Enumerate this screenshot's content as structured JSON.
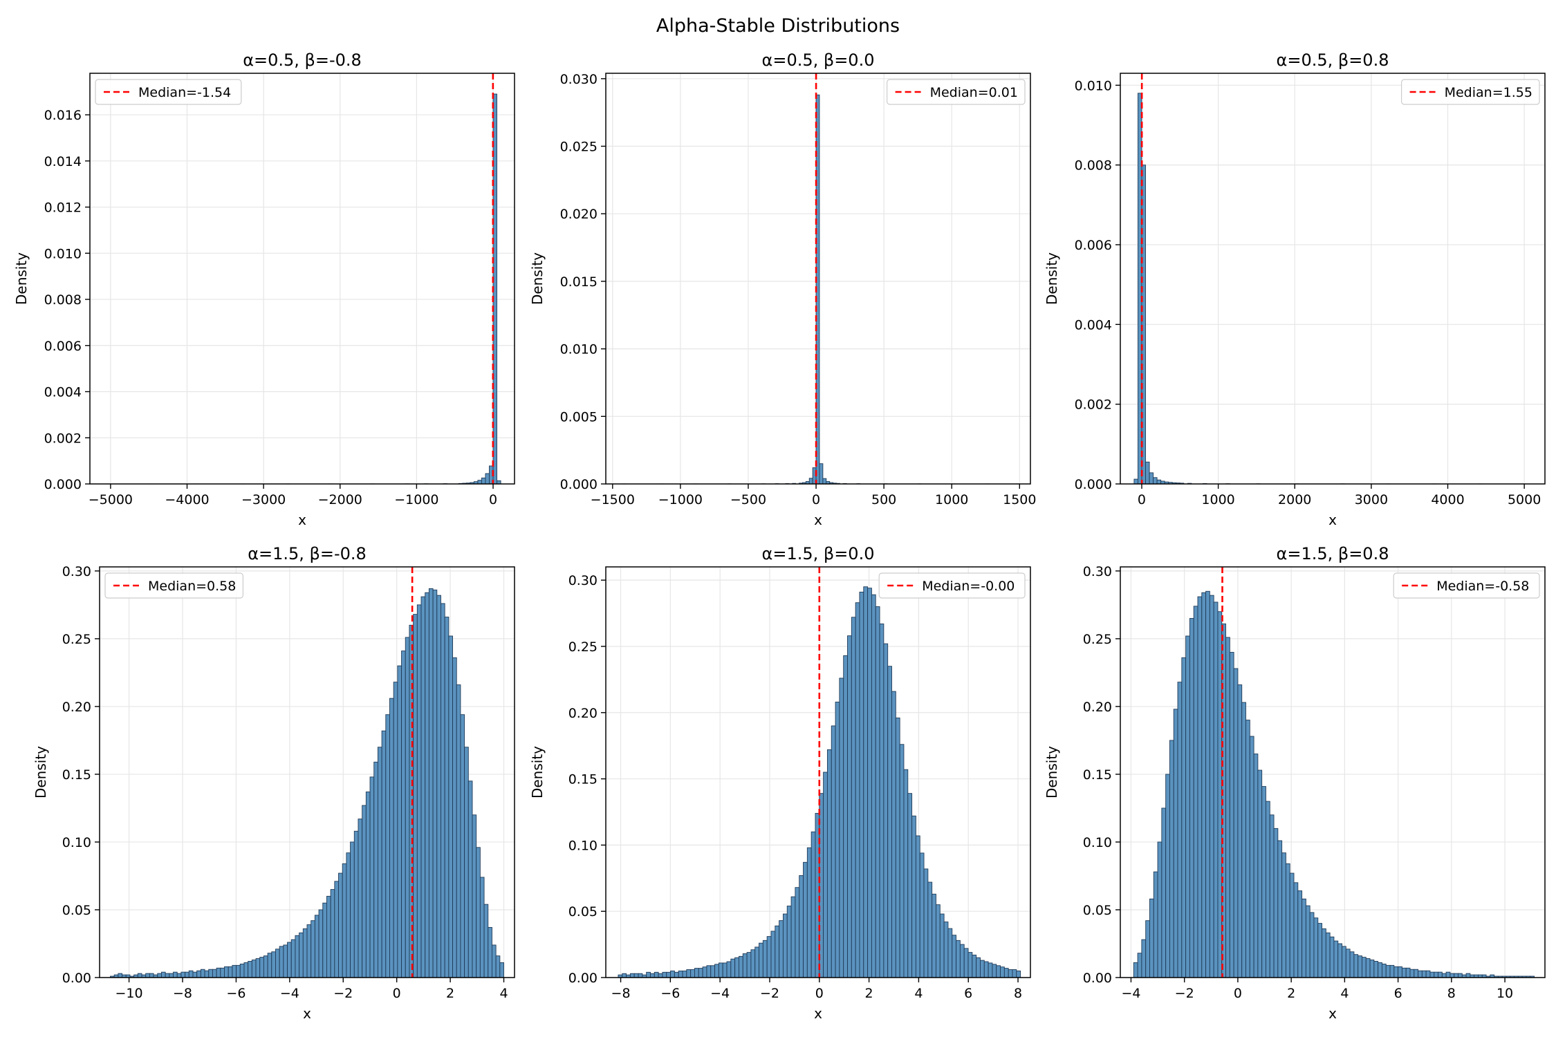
{
  "figure": {
    "title": "Alpha-Stable Distributions"
  },
  "colors": {
    "bar_fill": "#5b93bf",
    "bar_edge": "#1f3a57",
    "median_line": "#ff0000",
    "grid": "#e6e6e6"
  },
  "chart_data": [
    {
      "type": "bar",
      "title": "α=0.5, β=-0.8",
      "xlabel": "x",
      "ylabel": "Density",
      "xlim": [
        -5270,
        280
      ],
      "ylim": [
        0,
        0.0178
      ],
      "xticks": [
        -5000,
        -4000,
        -3000,
        -2000,
        -1000,
        0
      ],
      "xtick_labels": [
        "−5000",
        "−4000",
        "−3000",
        "−2000",
        "−1000",
        "0"
      ],
      "yticks": [
        0,
        0.002,
        0.004,
        0.006,
        0.008,
        0.01,
        0.012,
        0.014,
        0.016
      ],
      "ytick_labels": [
        "0.000",
        "0.002",
        "0.004",
        "0.006",
        "0.008",
        "0.010",
        "0.012",
        "0.014",
        "0.016"
      ],
      "median": -1.54,
      "legend_label": "Median=-1.54",
      "legend_loc": "upper left",
      "grid": true,
      "bins": [
        [
          -5050,
          -5000,
          2e-06
        ],
        [
          -4500,
          -4450,
          2e-06
        ],
        [
          -3900,
          -3850,
          2e-06
        ],
        [
          -3300,
          -3250,
          2e-06
        ],
        [
          -2700,
          -2650,
          3e-06
        ],
        [
          -2150,
          -2100,
          3e-06
        ],
        [
          -1600,
          -1550,
          4e-06
        ],
        [
          -1150,
          -1100,
          5e-06
        ],
        [
          -900,
          -850,
          8e-06
        ],
        [
          -650,
          -600,
          1.2e-05
        ],
        [
          -450,
          -400,
          2e-05
        ],
        [
          -400,
          -350,
          3e-05
        ],
        [
          -350,
          -300,
          4e-05
        ],
        [
          -300,
          -250,
          6e-05
        ],
        [
          -250,
          -200,
          0.0001
        ],
        [
          -200,
          -150,
          0.00016
        ],
        [
          -150,
          -100,
          0.00026
        ],
        [
          -100,
          -50,
          0.00045
        ],
        [
          -50,
          0,
          0.00078
        ],
        [
          0,
          50,
          0.0169
        ],
        [
          50,
          100,
          0.00014
        ]
      ]
    },
    {
      "type": "bar",
      "title": "α=0.5, β=0.0",
      "xlabel": "x",
      "ylabel": "Density",
      "xlim": [
        -1550,
        1580
      ],
      "ylim": [
        0,
        0.0304
      ],
      "xticks": [
        -1500,
        -1000,
        -500,
        0,
        500,
        1000,
        1500
      ],
      "xtick_labels": [
        "−1500",
        "−1000",
        "−500",
        "0",
        "500",
        "1000",
        "1500"
      ],
      "yticks": [
        0,
        0.005,
        0.01,
        0.015,
        0.02,
        0.025,
        0.03
      ],
      "ytick_labels": [
        "0.000",
        "0.005",
        "0.010",
        "0.015",
        "0.020",
        "0.025",
        "0.030"
      ],
      "median": 0.01,
      "legend_label": "Median=0.01",
      "legend_loc": "upper right",
      "grid": true,
      "bins": [
        [
          -1425,
          -1400,
          5e-06
        ],
        [
          -1150,
          -1125,
          5e-06
        ],
        [
          -900,
          -875,
          6e-06
        ],
        [
          -650,
          -625,
          8e-06
        ],
        [
          -400,
          -375,
          1.2e-05
        ],
        [
          -300,
          -275,
          2e-05
        ],
        [
          -225,
          -200,
          3e-05
        ],
        [
          -175,
          -150,
          4e-05
        ],
        [
          -125,
          -100,
          6e-05
        ],
        [
          -100,
          -75,
          0.0001
        ],
        [
          -75,
          -50,
          0.00018
        ],
        [
          -50,
          -25,
          0.00042
        ],
        [
          -25,
          0,
          0.0012
        ],
        [
          0,
          25,
          0.0288
        ],
        [
          25,
          50,
          0.0015
        ],
        [
          50,
          75,
          0.0004
        ],
        [
          75,
          100,
          0.00018
        ],
        [
          100,
          125,
          0.0001
        ],
        [
          125,
          150,
          6e-05
        ],
        [
          150,
          175,
          4e-05
        ],
        [
          200,
          225,
          3e-05
        ],
        [
          300,
          325,
          2e-05
        ],
        [
          500,
          525,
          1.2e-05
        ],
        [
          750,
          775,
          8e-06
        ],
        [
          1000,
          1025,
          6e-06
        ],
        [
          1250,
          1275,
          5e-06
        ],
        [
          1475,
          1500,
          5e-06
        ]
      ]
    },
    {
      "type": "bar",
      "title": "α=0.5, β=0.8",
      "xlabel": "x",
      "ylabel": "Density",
      "xlim": [
        -280,
        5270
      ],
      "ylim": [
        0,
        0.0103
      ],
      "xticks": [
        0,
        1000,
        2000,
        3000,
        4000,
        5000
      ],
      "xtick_labels": [
        "0",
        "1000",
        "2000",
        "3000",
        "4000",
        "5000"
      ],
      "yticks": [
        0,
        0.002,
        0.004,
        0.006,
        0.008,
        0.01
      ],
      "ytick_labels": [
        "0.000",
        "0.002",
        "0.004",
        "0.006",
        "0.008",
        "0.010"
      ],
      "median": 1.55,
      "legend_label": "Median=1.55",
      "legend_loc": "upper right",
      "grid": true,
      "bins": [
        [
          -100,
          -50,
          0.00012
        ],
        [
          -50,
          0,
          0.0098
        ],
        [
          0,
          50,
          0.008
        ],
        [
          50,
          100,
          0.00055
        ],
        [
          100,
          150,
          0.00028
        ],
        [
          150,
          200,
          0.00016
        ],
        [
          200,
          250,
          0.0001
        ],
        [
          250,
          300,
          7e-05
        ],
        [
          300,
          350,
          5e-05
        ],
        [
          350,
          400,
          4e-05
        ],
        [
          400,
          450,
          3e-05
        ],
        [
          450,
          500,
          2.5e-05
        ],
        [
          500,
          550,
          2e-05
        ],
        [
          600,
          650,
          1.5e-05
        ],
        [
          800,
          850,
          1e-05
        ],
        [
          1100,
          1150,
          6e-06
        ],
        [
          1500,
          1550,
          4e-06
        ],
        [
          2000,
          2050,
          3e-06
        ],
        [
          2600,
          2650,
          3e-06
        ],
        [
          3200,
          3250,
          2e-06
        ],
        [
          3800,
          3850,
          2e-06
        ],
        [
          4400,
          4450,
          2e-06
        ],
        [
          4950,
          5000,
          2e-06
        ]
      ]
    },
    {
      "type": "bar",
      "title": "α=1.5, β=-0.8",
      "xlabel": "x",
      "ylabel": "Density",
      "xlim": [
        -11.1,
        4.4
      ],
      "ylim": [
        0,
        0.303
      ],
      "xticks": [
        -10,
        -8,
        -6,
        -4,
        -2,
        0,
        2,
        4
      ],
      "xtick_labels": [
        "−10",
        "−8",
        "−6",
        "−4",
        "−2",
        "0",
        "2",
        "4"
      ],
      "yticks": [
        0,
        0.05,
        0.1,
        0.15,
        0.2,
        0.25,
        0.3
      ],
      "ytick_labels": [
        "0.00",
        "0.05",
        "0.10",
        "0.15",
        "0.20",
        "0.25",
        "0.30"
      ],
      "median": 0.58,
      "legend_label": "Median=0.58",
      "legend_loc": "upper left",
      "grid": true,
      "bin_start": -10.7,
      "bin_width": 0.147,
      "densities": [
        0.001,
        0.002,
        0.003,
        0.002,
        0.002,
        0.001,
        0.002,
        0.003,
        0.002,
        0.003,
        0.003,
        0.002,
        0.003,
        0.004,
        0.003,
        0.003,
        0.004,
        0.003,
        0.004,
        0.004,
        0.005,
        0.004,
        0.005,
        0.006,
        0.005,
        0.006,
        0.006,
        0.007,
        0.007,
        0.008,
        0.008,
        0.009,
        0.009,
        0.01,
        0.011,
        0.012,
        0.013,
        0.014,
        0.015,
        0.016,
        0.018,
        0.019,
        0.021,
        0.023,
        0.024,
        0.026,
        0.028,
        0.031,
        0.033,
        0.036,
        0.039,
        0.042,
        0.046,
        0.05,
        0.055,
        0.06,
        0.065,
        0.071,
        0.077,
        0.084,
        0.092,
        0.1,
        0.108,
        0.117,
        0.127,
        0.137,
        0.148,
        0.159,
        0.17,
        0.182,
        0.194,
        0.206,
        0.218,
        0.23,
        0.241,
        0.251,
        0.26,
        0.268,
        0.275,
        0.281,
        0.284,
        0.287,
        0.286,
        0.282,
        0.276,
        0.266,
        0.252,
        0.236,
        0.216,
        0.194,
        0.17,
        0.145,
        0.12,
        0.096,
        0.074,
        0.054,
        0.037,
        0.024,
        0.016,
        0.011
      ]
    },
    {
      "type": "bar",
      "title": "α=1.5, β=0.0",
      "xlabel": "x",
      "ylabel": "Density",
      "xlim": [
        -8.6,
        8.5
      ],
      "ylim": [
        0,
        0.31
      ],
      "xticks": [
        -8,
        -6,
        -4,
        -2,
        0,
        2,
        4,
        6,
        8
      ],
      "xtick_labels": [
        "−8",
        "−6",
        "−4",
        "−2",
        "0",
        "2",
        "4",
        "6",
        "8"
      ],
      "yticks": [
        0,
        0.05,
        0.1,
        0.15,
        0.2,
        0.25,
        0.3
      ],
      "ytick_labels": [
        "0.00",
        "0.05",
        "0.10",
        "0.15",
        "0.20",
        "0.25",
        "0.30"
      ],
      "median": -0.0,
      "legend_label": "Median=-0.00",
      "legend_loc": "upper right",
      "grid": true,
      "bin_start": -8.1,
      "bin_width": 0.162,
      "densities": [
        0.002,
        0.003,
        0.002,
        0.003,
        0.003,
        0.003,
        0.002,
        0.004,
        0.003,
        0.004,
        0.003,
        0.004,
        0.004,
        0.005,
        0.004,
        0.005,
        0.005,
        0.006,
        0.006,
        0.007,
        0.007,
        0.008,
        0.009,
        0.009,
        0.01,
        0.011,
        0.011,
        0.012,
        0.014,
        0.015,
        0.016,
        0.018,
        0.019,
        0.021,
        0.023,
        0.026,
        0.028,
        0.031,
        0.035,
        0.039,
        0.043,
        0.048,
        0.054,
        0.061,
        0.068,
        0.077,
        0.087,
        0.098,
        0.11,
        0.124,
        0.139,
        0.155,
        0.172,
        0.19,
        0.208,
        0.226,
        0.243,
        0.258,
        0.272,
        0.283,
        0.291,
        0.295,
        0.294,
        0.289,
        0.28,
        0.267,
        0.252,
        0.235,
        0.216,
        0.196,
        0.176,
        0.157,
        0.139,
        0.122,
        0.107,
        0.094,
        0.082,
        0.072,
        0.063,
        0.055,
        0.048,
        0.042,
        0.037,
        0.032,
        0.028,
        0.025,
        0.022,
        0.019,
        0.017,
        0.015,
        0.013,
        0.012,
        0.011,
        0.01,
        0.009,
        0.008,
        0.007,
        0.006,
        0.006,
        0.005
      ]
    },
    {
      "type": "bar",
      "title": "α=1.5, β=0.8",
      "xlabel": "x",
      "ylabel": "Density",
      "xlim": [
        -4.4,
        11.5
      ],
      "ylim": [
        0,
        0.303
      ],
      "xticks": [
        -4,
        -2,
        0,
        2,
        4,
        6,
        8,
        10
      ],
      "xtick_labels": [
        "−4",
        "−2",
        "0",
        "2",
        "4",
        "6",
        "8",
        "10"
      ],
      "yticks": [
        0,
        0.05,
        0.1,
        0.15,
        0.2,
        0.25,
        0.3
      ],
      "ytick_labels": [
        "0.00",
        "0.05",
        "0.10",
        "0.15",
        "0.20",
        "0.25",
        "0.30"
      ],
      "median": -0.58,
      "legend_label": "Median=-0.58",
      "legend_loc": "upper right",
      "grid": true,
      "bin_start": -3.9,
      "bin_width": 0.15,
      "densities": [
        0.011,
        0.018,
        0.028,
        0.042,
        0.058,
        0.078,
        0.1,
        0.125,
        0.15,
        0.175,
        0.198,
        0.218,
        0.236,
        0.252,
        0.265,
        0.274,
        0.281,
        0.284,
        0.285,
        0.282,
        0.277,
        0.27,
        0.261,
        0.251,
        0.24,
        0.228,
        0.216,
        0.203,
        0.19,
        0.178,
        0.165,
        0.153,
        0.141,
        0.13,
        0.12,
        0.11,
        0.101,
        0.092,
        0.084,
        0.077,
        0.07,
        0.064,
        0.058,
        0.053,
        0.048,
        0.044,
        0.04,
        0.036,
        0.033,
        0.03,
        0.027,
        0.025,
        0.023,
        0.021,
        0.019,
        0.017,
        0.016,
        0.015,
        0.014,
        0.013,
        0.012,
        0.011,
        0.01,
        0.009,
        0.009,
        0.008,
        0.008,
        0.007,
        0.007,
        0.006,
        0.006,
        0.005,
        0.005,
        0.005,
        0.004,
        0.004,
        0.004,
        0.003,
        0.004,
        0.003,
        0.003,
        0.003,
        0.002,
        0.003,
        0.002,
        0.002,
        0.002,
        0.002,
        0.001,
        0.002,
        0.001,
        0.001,
        0.001,
        0.001,
        0.001,
        0.001,
        0.001,
        0.001,
        0.001,
        0.001
      ]
    }
  ]
}
